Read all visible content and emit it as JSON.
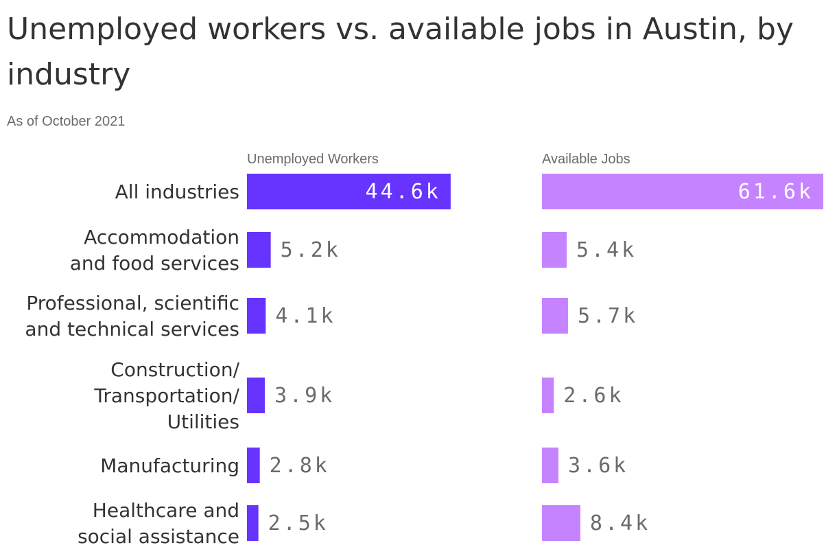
{
  "title": "Unemployed workers vs. available jobs in Austin, by industry",
  "subtitle": "As of October 2021",
  "colors": {
    "unemployed": "#6633ff",
    "jobs": "#c583ff",
    "text": "#333333",
    "muted": "#6b6b6b",
    "inside_label": "#ffffff"
  },
  "chart_data": {
    "type": "bar",
    "orientation": "horizontal",
    "categories": [
      "All industries",
      "Accommodation and food services",
      "Professional, scientific and technical services",
      "Construction/ Transportation/ Utilities",
      "Manufacturing",
      "Healthcare and social assistance"
    ],
    "series": [
      {
        "name": "Unemployed Workers",
        "values": [
          44.6,
          5.2,
          4.1,
          3.9,
          2.8,
          2.5
        ],
        "labels": [
          "44.6k",
          "5.2k",
          "4.1k",
          "3.9k",
          "2.8k",
          "2.5k"
        ]
      },
      {
        "name": "Available Jobs",
        "values": [
          61.6,
          5.4,
          5.7,
          2.6,
          3.6,
          8.4
        ],
        "labels": [
          "61.6k",
          "5.4k",
          "5.7k",
          "2.6k",
          "3.6k",
          "8.4k"
        ]
      }
    ],
    "unit": "k",
    "xlim": [
      0,
      61.6
    ],
    "grid": false,
    "legend": "none"
  }
}
